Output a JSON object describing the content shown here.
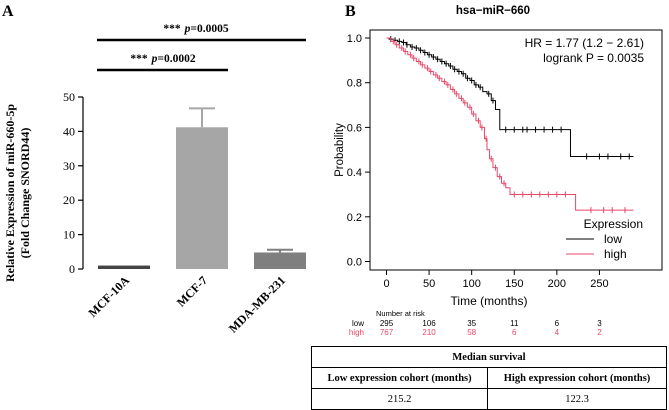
{
  "panels": {
    "a": "A",
    "b": "B"
  },
  "chart_data": [
    {
      "type": "bar",
      "panel": "A",
      "ylabel_line1": "Relative Expression of miR-660-5p",
      "ylabel_line2": "(Fold Change SNORD44)",
      "ylim": [
        0,
        50
      ],
      "yticks": [
        0,
        10,
        20,
        30,
        40,
        50
      ],
      "categories": [
        "MCF-10A",
        "MCF-7",
        "MDA-MB-231"
      ],
      "values": [
        1,
        41.2,
        4.8
      ],
      "errors": [
        0,
        5.5,
        0.8
      ],
      "colors": [
        "#444444",
        "#a6a6a6",
        "#7f7f7f"
      ],
      "annotations": [
        {
          "stars": "***",
          "p": "p",
          "value": "=0.0002",
          "from": 0,
          "to": 1
        },
        {
          "stars": "***",
          "p": "p",
          "value": "=0.0005",
          "from": 0,
          "to": 2
        }
      ]
    },
    {
      "type": "line",
      "panel": "B",
      "title": "hsa−miR−660",
      "xlabel": "Time (months)",
      "ylabel": "Probability",
      "xlim": [
        0,
        290
      ],
      "ylim": [
        0,
        1.0
      ],
      "xticks": [
        0,
        50,
        100,
        150,
        200,
        250
      ],
      "yticks": [
        "0.0",
        "0.2",
        "0.4",
        "0.6",
        "0.8",
        "1.0"
      ],
      "hr_text": "HR = 1.77 (1.2 − 2.61)",
      "logrank_text": "logrank P = 0.0035",
      "legend_title": "Expression",
      "series": [
        {
          "name": "low",
          "color": "#000000",
          "x": [
            0,
            3,
            8,
            13,
            18,
            23,
            28,
            33,
            38,
            43,
            48,
            53,
            58,
            63,
            68,
            73,
            78,
            83,
            88,
            93,
            98,
            103,
            108,
            113,
            118,
            123,
            128,
            133,
            216,
            290
          ],
          "y": [
            1.0,
            0.995,
            0.99,
            0.985,
            0.98,
            0.97,
            0.96,
            0.955,
            0.945,
            0.935,
            0.925,
            0.915,
            0.905,
            0.895,
            0.885,
            0.875,
            0.86,
            0.85,
            0.84,
            0.82,
            0.81,
            0.79,
            0.78,
            0.76,
            0.75,
            0.72,
            0.68,
            0.59,
            0.47,
            0.47
          ],
          "censor_x": [
            5,
            10,
            15,
            20,
            24,
            30,
            35,
            40,
            45,
            50,
            55,
            60,
            65,
            70,
            75,
            80,
            85,
            90,
            95,
            100,
            105,
            110,
            120,
            125,
            140,
            150,
            160,
            165,
            175,
            185,
            195,
            205,
            235,
            250,
            260,
            275,
            285
          ]
        },
        {
          "name": "high",
          "color": "#e8486a",
          "x": [
            0,
            5,
            10,
            15,
            20,
            25,
            30,
            35,
            40,
            45,
            50,
            55,
            60,
            65,
            70,
            75,
            80,
            85,
            90,
            95,
            100,
            105,
            110,
            115,
            118,
            121,
            125,
            130,
            135,
            140,
            145,
            222,
            290
          ],
          "y": [
            1.0,
            0.985,
            0.97,
            0.955,
            0.94,
            0.925,
            0.91,
            0.895,
            0.88,
            0.865,
            0.85,
            0.835,
            0.82,
            0.805,
            0.79,
            0.77,
            0.75,
            0.73,
            0.71,
            0.69,
            0.66,
            0.63,
            0.6,
            0.55,
            0.5,
            0.46,
            0.42,
            0.38,
            0.35,
            0.33,
            0.3,
            0.23,
            0.23
          ],
          "censor_x": [
            8,
            12,
            18,
            22,
            28,
            32,
            38,
            42,
            48,
            52,
            58,
            62,
            68,
            72,
            78,
            82,
            88,
            92,
            98,
            102,
            108,
            112,
            117,
            123,
            128,
            133,
            138,
            150,
            160,
            170,
            180,
            190,
            200,
            210,
            240,
            255,
            265,
            280
          ]
        }
      ],
      "risk_table": {
        "title": "Number at risk",
        "rows": [
          {
            "label": "low",
            "color": "#000000",
            "counts": [
              "295",
              "106",
              "35",
              "11",
              "6",
              "3"
            ]
          },
          {
            "label": "high",
            "color": "#e8486a",
            "counts": [
              "767",
              "210",
              "58",
              "6",
              "4",
              "2"
            ]
          }
        ]
      }
    }
  ],
  "median_survival": {
    "title": "Median survival",
    "columns": [
      "Low expression cohort (months)",
      "High expression cohort (months)"
    ],
    "values": [
      "215.2",
      "122.3"
    ]
  }
}
